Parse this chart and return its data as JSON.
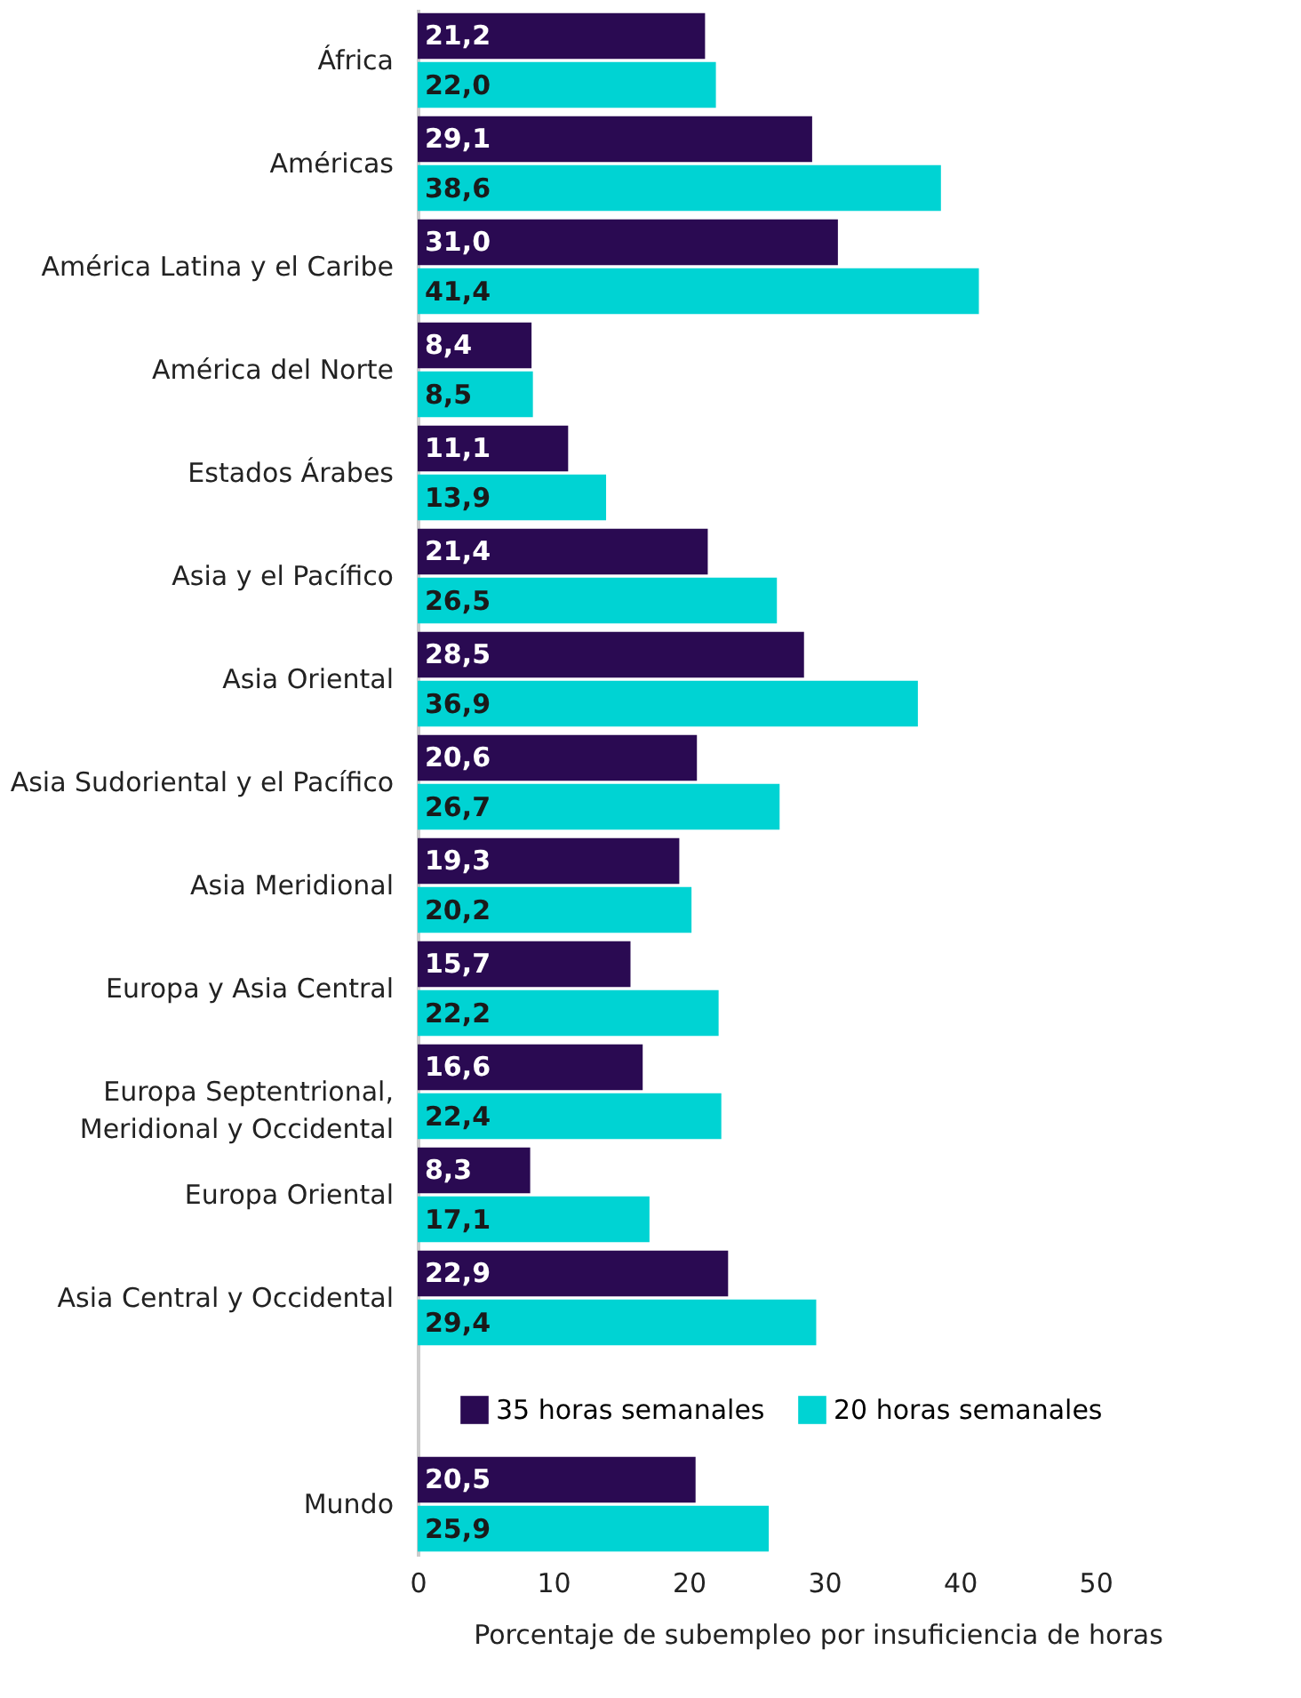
{
  "chart_data": {
    "type": "bar",
    "orientation": "horizontal",
    "xlabel": "Porcentaje de subempleo por insuficiencia de horas",
    "categories": [
      "África",
      "Américas",
      "América Latina y el Caribe",
      "América del Norte",
      "Estados Árabes",
      "Asia y el Pacífico",
      "Asia Oriental",
      "Asia Sudoriental y el Pacífico",
      "Asia Meridional",
      "Europa y Asia Central",
      "Europa Septentrional,\nMeridional y Occidental",
      "Europa Oriental",
      "Asia Central y Occidental",
      null,
      "Mundo"
    ],
    "series": [
      {
        "name": "35 horas semanales",
        "color": "#2a0a52",
        "values": [
          21.2,
          29.1,
          31.0,
          8.4,
          11.1,
          21.4,
          28.5,
          20.6,
          19.3,
          15.7,
          16.6,
          8.3,
          22.9,
          null,
          20.5
        ],
        "value_labels": [
          "21,2",
          "29,1",
          "31,0",
          "8,4",
          "11,1",
          "21,4",
          "28,5",
          "20,6",
          "19,3",
          "15,7",
          "16,6",
          "8,3",
          "22,9",
          null,
          "20,5"
        ]
      },
      {
        "name": "20 horas semanales",
        "color": "#00d3d3",
        "values": [
          22.0,
          38.6,
          41.4,
          8.5,
          13.9,
          26.5,
          36.9,
          26.7,
          20.2,
          22.2,
          22.4,
          17.1,
          29.4,
          null,
          25.9
        ],
        "value_labels": [
          "22,0",
          "38,6",
          "41,4",
          "8,5",
          "13,9",
          "26,5",
          "36,9",
          "26,7",
          "20,2",
          "22,2",
          "22,4",
          "17,1",
          "29,4",
          null,
          "25,9"
        ]
      }
    ],
    "xlim": [
      0,
      59
    ],
    "xticks": [
      0,
      10,
      20,
      30,
      40,
      50
    ],
    "grid": false,
    "legend": "bottom"
  }
}
